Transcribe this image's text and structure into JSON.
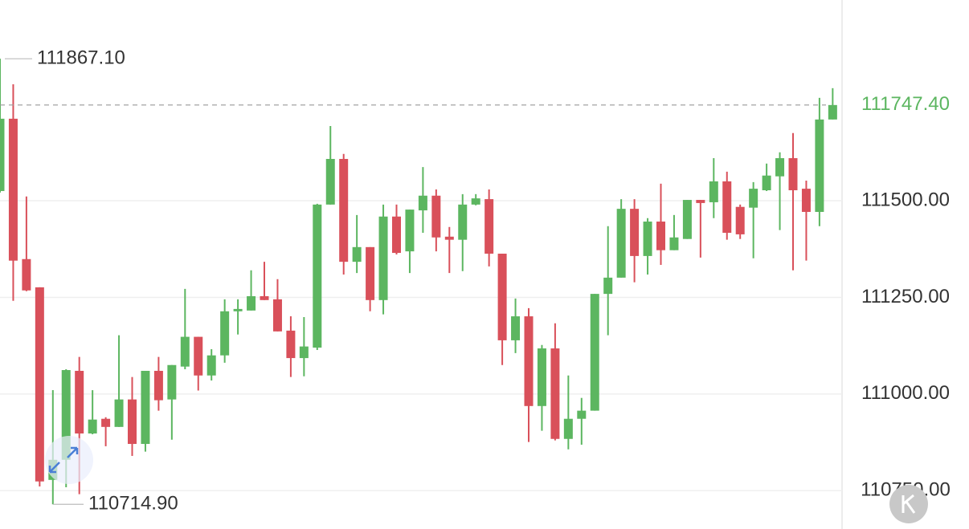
{
  "chart_data": {
    "type": "candlestick",
    "up_color": "#5cb660",
    "down_color": "#d9505a",
    "grid": true,
    "ylim": [
      110651,
      112019
    ],
    "yticks": [
      {
        "value": 111500,
        "label": "111500.00"
      },
      {
        "value": 111250,
        "label": "111250.00"
      },
      {
        "value": 111000,
        "label": "111000.00"
      },
      {
        "value": 110750,
        "label": "110750.00"
      }
    ],
    "high_label": {
      "value": 111867.1,
      "label": "111867.10"
    },
    "low_label": {
      "value": 110714.9,
      "label": "110714.90"
    },
    "last_price": {
      "value": 111747.4,
      "label": "111747.40"
    },
    "open": [
      111525,
      111712,
      111349,
      111276,
      110778,
      110830,
      111060,
      110898,
      110936,
      110915,
      110986,
      110871,
      111060,
      110986,
      111071,
      111148,
      111048,
      111100,
      111214,
      111216,
      111253,
      111245,
      111164,
      111093,
      111120,
      111490,
      111608,
      111342,
      111380,
      111243,
      111459,
      111369,
      111475,
      111513,
      111407,
      111399,
      111490,
      111504,
      111363,
      111139,
      111201,
      110969,
      111118,
      110884,
      110936,
      110957,
      111259,
      111301,
      111479,
      111357,
      111446,
      111372,
      111401,
      111502,
      111496,
      111550,
      111484,
      111482,
      111527,
      111563,
      111610,
      111531,
      111471,
      111710
    ],
    "close": [
      111712,
      111345,
      111268,
      110774,
      110830,
      111062,
      110898,
      110934,
      110915,
      110986,
      110871,
      111060,
      110984,
      111075,
      111148,
      111048,
      111100,
      111214,
      111220,
      111253,
      111243,
      111162,
      111093,
      111123,
      111490,
      111608,
      111342,
      111380,
      111243,
      111459,
      111365,
      111477,
      111513,
      111405,
      111399,
      111490,
      111506,
      111363,
      111139,
      111201,
      110969,
      111118,
      110884,
      110936,
      110957,
      111259,
      111301,
      111479,
      111357,
      111446,
      111372,
      111405,
      111502,
      111494,
      111550,
      111417,
      111413,
      111531,
      111565,
      111610,
      111527,
      111471,
      111710,
      111747.4
    ],
    "high": [
      111867.1,
      111801,
      111511,
      111276,
      111010,
      111064,
      111096,
      111010,
      110940,
      111152,
      111044,
      111060,
      111096,
      111075,
      111272,
      111148,
      111116,
      111245,
      111245,
      111320,
      111342,
      111297,
      111201,
      111199,
      111492,
      111693,
      111621,
      111463,
      111380,
      111490,
      111490,
      111477,
      111587,
      111529,
      111432,
      111517,
      111517,
      111529,
      111363,
      111247,
      111222,
      111127,
      111183,
      111048,
      110990,
      111259,
      111434,
      111504,
      111504,
      111455,
      111544,
      111463,
      111502,
      111502,
      111610,
      111575,
      111490,
      111548,
      111596,
      111625,
      111675,
      111552,
      111766,
      111791
    ],
    "low": [
      111521,
      111241,
      111266,
      110761,
      110714.9,
      110759,
      110741,
      110896,
      110865,
      110915,
      110840,
      110851,
      110957,
      110882,
      111064,
      111009,
      111035,
      111081,
      111154,
      111216,
      111243,
      111162,
      111044,
      111046,
      111114,
      111490,
      111309,
      111313,
      111214,
      111206,
      111361,
      111313,
      111417,
      111369,
      111313,
      111318,
      111488,
      111330,
      111075,
      111106,
      110876,
      110905,
      110880,
      110857,
      110869,
      110957,
      111152,
      111301,
      111289,
      111309,
      111334,
      111372,
      111401,
      111353,
      111455,
      111399,
      111401,
      111351,
      111525,
      111424,
      111320,
      111345,
      111434,
      111710
    ]
  }
}
